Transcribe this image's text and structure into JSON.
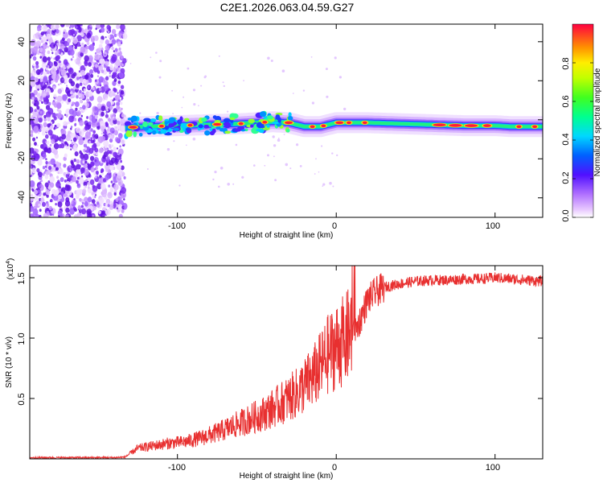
{
  "title": "C2E1.2026.063.04.59.G27",
  "chart_data": [
    {
      "type": "heatmap",
      "title": "C2E1.2026.063.04.59.G27",
      "xlabel": "Height of straight line (km)",
      "ylabel": "Frequency (Hz)",
      "xlim": [
        -193,
        130
      ],
      "ylim": [
        -50,
        49
      ],
      "xticks": [
        "-100",
        "0",
        "100"
      ],
      "yticks": [
        "-40",
        "-20",
        "0",
        "20",
        "40"
      ],
      "description_of_data": "Spectrum vs height: broadband noise below about -133 km, a narrow line near 0 Hz that drifts from about -4 Hz to about -2 Hz for heights above -133 km",
      "noise_region_km": [
        -193,
        -133
      ],
      "line_track": {
        "height_km": [
          -133,
          -120,
          -100,
          -80,
          -60,
          -40,
          -30,
          -20,
          -10,
          0,
          10,
          20,
          40,
          60,
          80,
          100,
          110,
          130
        ],
        "frequency_hz": [
          -4,
          -3.5,
          -3,
          -2.5,
          -2,
          -1,
          -1.5,
          -3.5,
          -3.5,
          -1.5,
          -1.5,
          -1.5,
          -2,
          -2.5,
          -3,
          -3,
          -3.5,
          -3.5
        ]
      },
      "colorbar": {
        "label": "Normalized spectral amplitude",
        "range": [
          0,
          1
        ],
        "ticks": [
          "0.0",
          "0.2",
          "0.4",
          "0.6",
          "0.8"
        ],
        "colormap": "rainbow"
      }
    },
    {
      "type": "line",
      "xlabel": "Height of straight line (km)",
      "ylabel": "SNR (10 * v/v)",
      "y_multiplier_label": "(x10",
      "y_multiplier_exp": "4",
      "xlim": [
        -193,
        130
      ],
      "ylim": [
        0,
        16000
      ],
      "xticks": [
        "-100",
        "0",
        "100"
      ],
      "yticks": [
        "0.5",
        "1.0",
        "1.5"
      ],
      "series": [
        {
          "name": "SNR",
          "color": "#e83030",
          "x": [
            -193,
            -140,
            -133,
            -125,
            -115,
            -105,
            -95,
            -85,
            -75,
            -65,
            -55,
            -45,
            -35,
            -25,
            -20,
            -15,
            -10,
            -5,
            0,
            5,
            8,
            10,
            15,
            20,
            25,
            30,
            40,
            50,
            60,
            70,
            80,
            90,
            100,
            110,
            120,
            130
          ],
          "y": [
            100,
            100,
            150,
            800,
            1000,
            1200,
            1300,
            1600,
            2000,
            2500,
            3000,
            3500,
            4200,
            5000,
            5600,
            6200,
            7000,
            8000,
            8600,
            9000,
            9500,
            10000,
            11500,
            13200,
            13800,
            14200,
            14500,
            14700,
            14800,
            14800,
            14900,
            14900,
            15000,
            14900,
            14800,
            14700
          ]
        }
      ]
    }
  ]
}
